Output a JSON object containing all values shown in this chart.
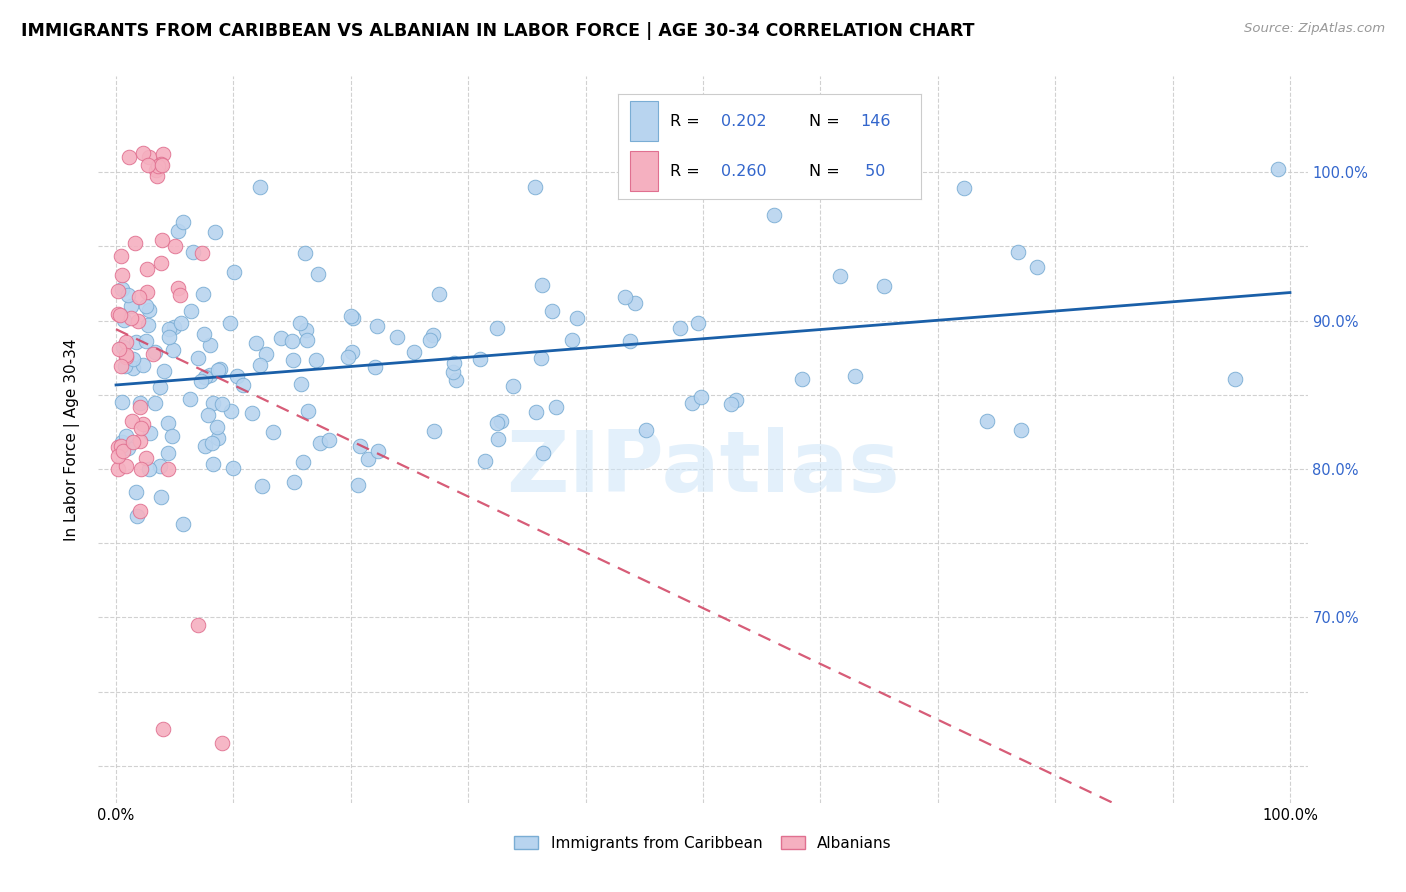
{
  "title": "IMMIGRANTS FROM CARIBBEAN VS ALBANIAN IN LABOR FORCE | AGE 30-34 CORRELATION CHART",
  "source": "Source: ZipAtlas.com",
  "ylabel": "In Labor Force | Age 30-34",
  "xlim": [
    -0.015,
    1.015
  ],
  "ylim": [
    0.575,
    1.065
  ],
  "yticks": [
    0.6,
    0.65,
    0.7,
    0.75,
    0.8,
    0.85,
    0.9,
    0.95,
    1.0
  ],
  "ytick_labels_right": [
    "",
    "",
    "70.0%",
    "",
    "80.0%",
    "",
    "90.0%",
    "",
    "100.0%"
  ],
  "xticks": [
    0.0,
    0.1,
    0.2,
    0.3,
    0.4,
    0.5,
    0.6,
    0.7,
    0.8,
    0.9,
    1.0
  ],
  "xtick_labels": [
    "0.0%",
    "",
    "",
    "",
    "",
    "",
    "",
    "",
    "",
    "",
    "100.0%"
  ],
  "blue_fill": "#b8d4ef",
  "blue_edge": "#7aadd4",
  "pink_fill": "#f5b0c0",
  "pink_edge": "#e07090",
  "blue_line_color": "#1a5fa8",
  "pink_line_color": "#d04060",
  "accent_blue": "#3366cc",
  "R_blue": 0.202,
  "N_blue": 146,
  "R_pink": 0.26,
  "N_pink": 50,
  "watermark": "ZIPatlas",
  "bg": "#ffffff",
  "legend_box_edge": "#cccccc"
}
